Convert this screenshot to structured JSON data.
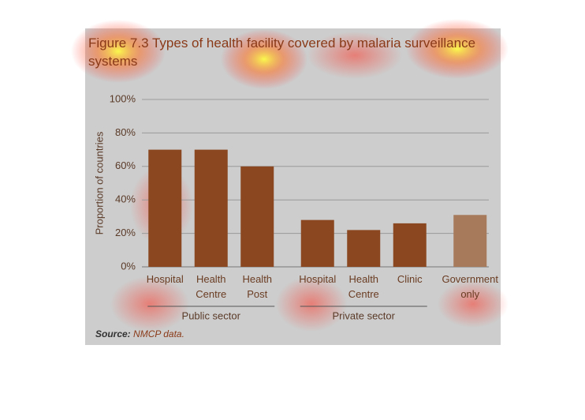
{
  "chart_data": {
    "type": "bar",
    "title": "Figure 7.3 Types of health facility covered by malaria surveillance systems",
    "y_label": "Proportion of countries",
    "categories": [
      "Hospital",
      "Health Centre",
      "Health Post",
      "Hospital",
      "Health Centre",
      "Clinic",
      "Government only"
    ],
    "values": [
      70,
      70,
      60,
      28,
      22,
      26,
      31
    ],
    "colors": [
      "#8a4720",
      "#8a4720",
      "#8a4720",
      "#8a4720",
      "#8a4720",
      "#8a4720",
      "#a77a5b"
    ],
    "groups": [
      {
        "label": "Public sector",
        "categories": [
          "Hospital",
          "Health Centre",
          "Health Post"
        ]
      },
      {
        "label": "Private sector",
        "categories": [
          "Hospital",
          "Health Centre",
          "Clinic"
        ]
      }
    ],
    "ylim": [
      0,
      100
    ],
    "yticks": [
      {
        "value": 0,
        "label": "0%"
      },
      {
        "value": 20,
        "label": "20%"
      },
      {
        "value": 40,
        "label": "40%"
      },
      {
        "value": 60,
        "label": "60%"
      },
      {
        "value": 80,
        "label": "80%"
      },
      {
        "value": 100,
        "label": "100%"
      }
    ],
    "grid": true,
    "source_label": "Source:",
    "source_text": "NMCP data."
  }
}
